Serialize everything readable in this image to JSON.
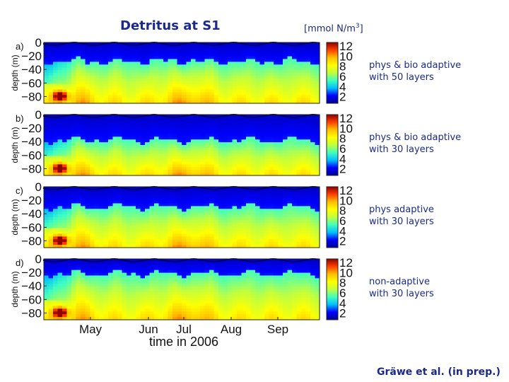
{
  "header": {
    "title": "Detritus at S1",
    "units_prefix": "[mmol N/m",
    "units_sup": "3",
    "units_suffix": "]"
  },
  "credit": "Gräwe et al. (in prep.)",
  "colors": {
    "text": "#1a2a8c",
    "colormap": [
      "#00008f",
      "#0000ff",
      "#00bfff",
      "#40ffbf",
      "#bfff40",
      "#ffff00",
      "#ffbf00",
      "#ff4000",
      "#8f0000"
    ]
  },
  "chart_data": {
    "type": "heatmap",
    "title": "Detritus at S1",
    "xlabel": "time in 2006",
    "ylabel": "depth (m)",
    "x_ticks": [
      "May",
      "Jun",
      "Jul",
      "Aug",
      "Sep"
    ],
    "y_ticks": [
      "0",
      "−20",
      "−40",
      "−60",
      "−80"
    ],
    "ylim": [
      -90,
      0
    ],
    "colorbar": {
      "ticks": [
        "12",
        "10",
        "8",
        "6",
        "4",
        "2"
      ],
      "range": [
        0,
        12
      ]
    },
    "panels": [
      {
        "letter": "a)",
        "label_line1": "phys & bio adaptive",
        "label_line2": "with 50 layers",
        "surface_layer_depth": -28
      },
      {
        "letter": "b)",
        "label_line1": "phys & bio adaptive",
        "label_line2": "with 30 layers",
        "surface_layer_depth": -38
      },
      {
        "letter": "c)",
        "label_line1": "phys adaptive",
        "label_line2": "with 30 layers",
        "surface_layer_depth": -30
      },
      {
        "letter": "d)",
        "label_line1": "non-adaptive",
        "label_line2": "with 30 layers",
        "surface_layer_depth": -22
      }
    ]
  }
}
